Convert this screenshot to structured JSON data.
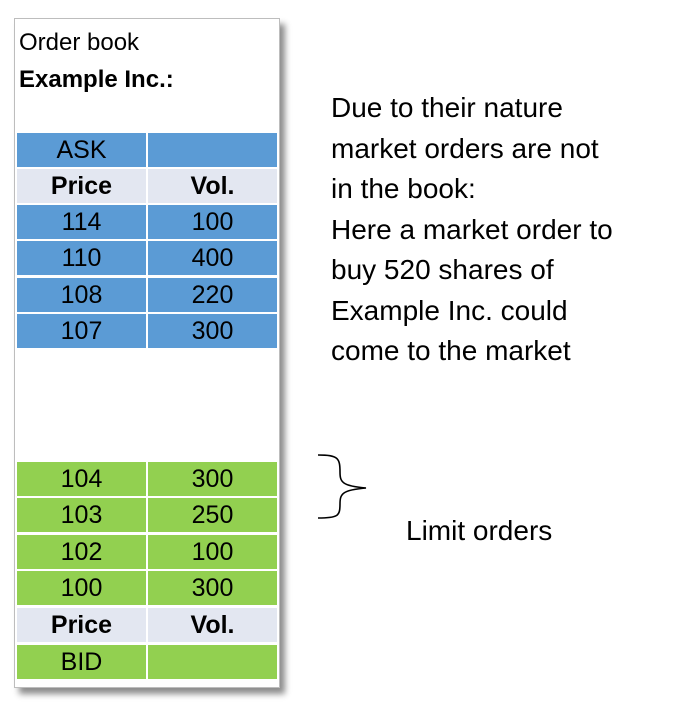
{
  "order_book": {
    "title_line1": "Order book",
    "title_line2": "Example Inc.:",
    "ask_label": "ASK",
    "bid_label": "BID",
    "header": {
      "price": "Price",
      "vol": "Vol."
    },
    "asks": [
      {
        "price": "114",
        "vol": "100"
      },
      {
        "price": "110",
        "vol": "400"
      },
      {
        "price": "108",
        "vol": "220"
      },
      {
        "price": "107",
        "vol": "300"
      }
    ],
    "bids": [
      {
        "price": "104",
        "vol": "300"
      },
      {
        "price": "103",
        "vol": "250"
      },
      {
        "price": "102",
        "vol": "100"
      },
      {
        "price": "100",
        "vol": "300"
      }
    ]
  },
  "annotation": {
    "lines": [
      "Due to their nature",
      "market orders are not",
      "in the book:",
      "Here a market order to",
      "buy 520 shares of",
      "Example Inc. could",
      "come to the market"
    ],
    "limit_label": "Limit orders"
  },
  "colors": {
    "ask": "#5b9bd5",
    "bid": "#92d050",
    "header": "#e3e7f1"
  }
}
